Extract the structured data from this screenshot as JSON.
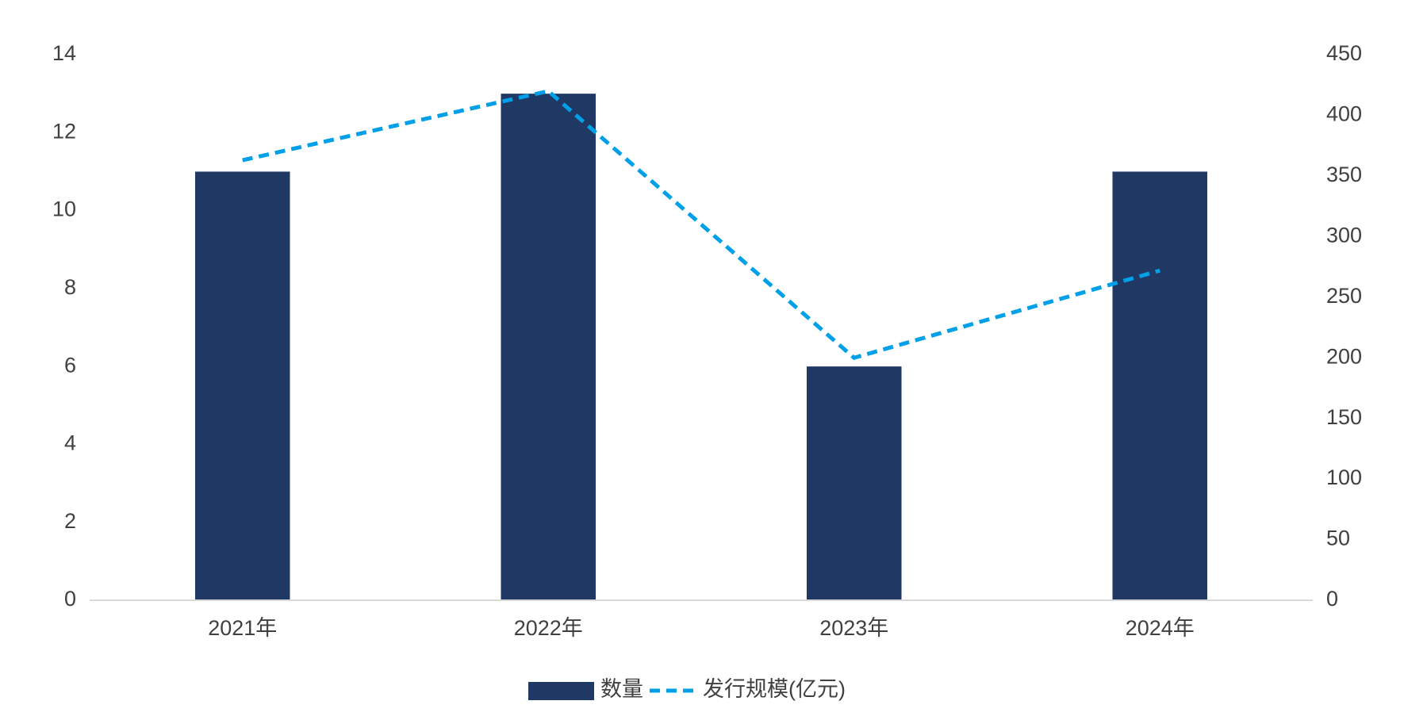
{
  "chart_data": {
    "type": "bar_line",
    "categories": [
      "2021年",
      "2022年",
      "2023年",
      "2024年"
    ],
    "series": [
      {
        "name": "数量",
        "type": "bar",
        "color": "#203864",
        "values": [
          11,
          13,
          6,
          11
        ]
      },
      {
        "name": "发行规模(亿元)",
        "type": "line",
        "color": "#00a0e9",
        "dashed": true,
        "axis": "y2",
        "values": [
          363,
          420,
          200,
          272
        ]
      }
    ],
    "ylim": [
      0,
      14
    ],
    "yticks": [
      0,
      2,
      4,
      6,
      8,
      10,
      12,
      14
    ],
    "y2lim": [
      0,
      450
    ],
    "y2ticks": [
      0,
      50,
      100,
      150,
      200,
      250,
      300,
      350,
      400,
      450
    ],
    "grid": false,
    "legend": "bottom"
  }
}
